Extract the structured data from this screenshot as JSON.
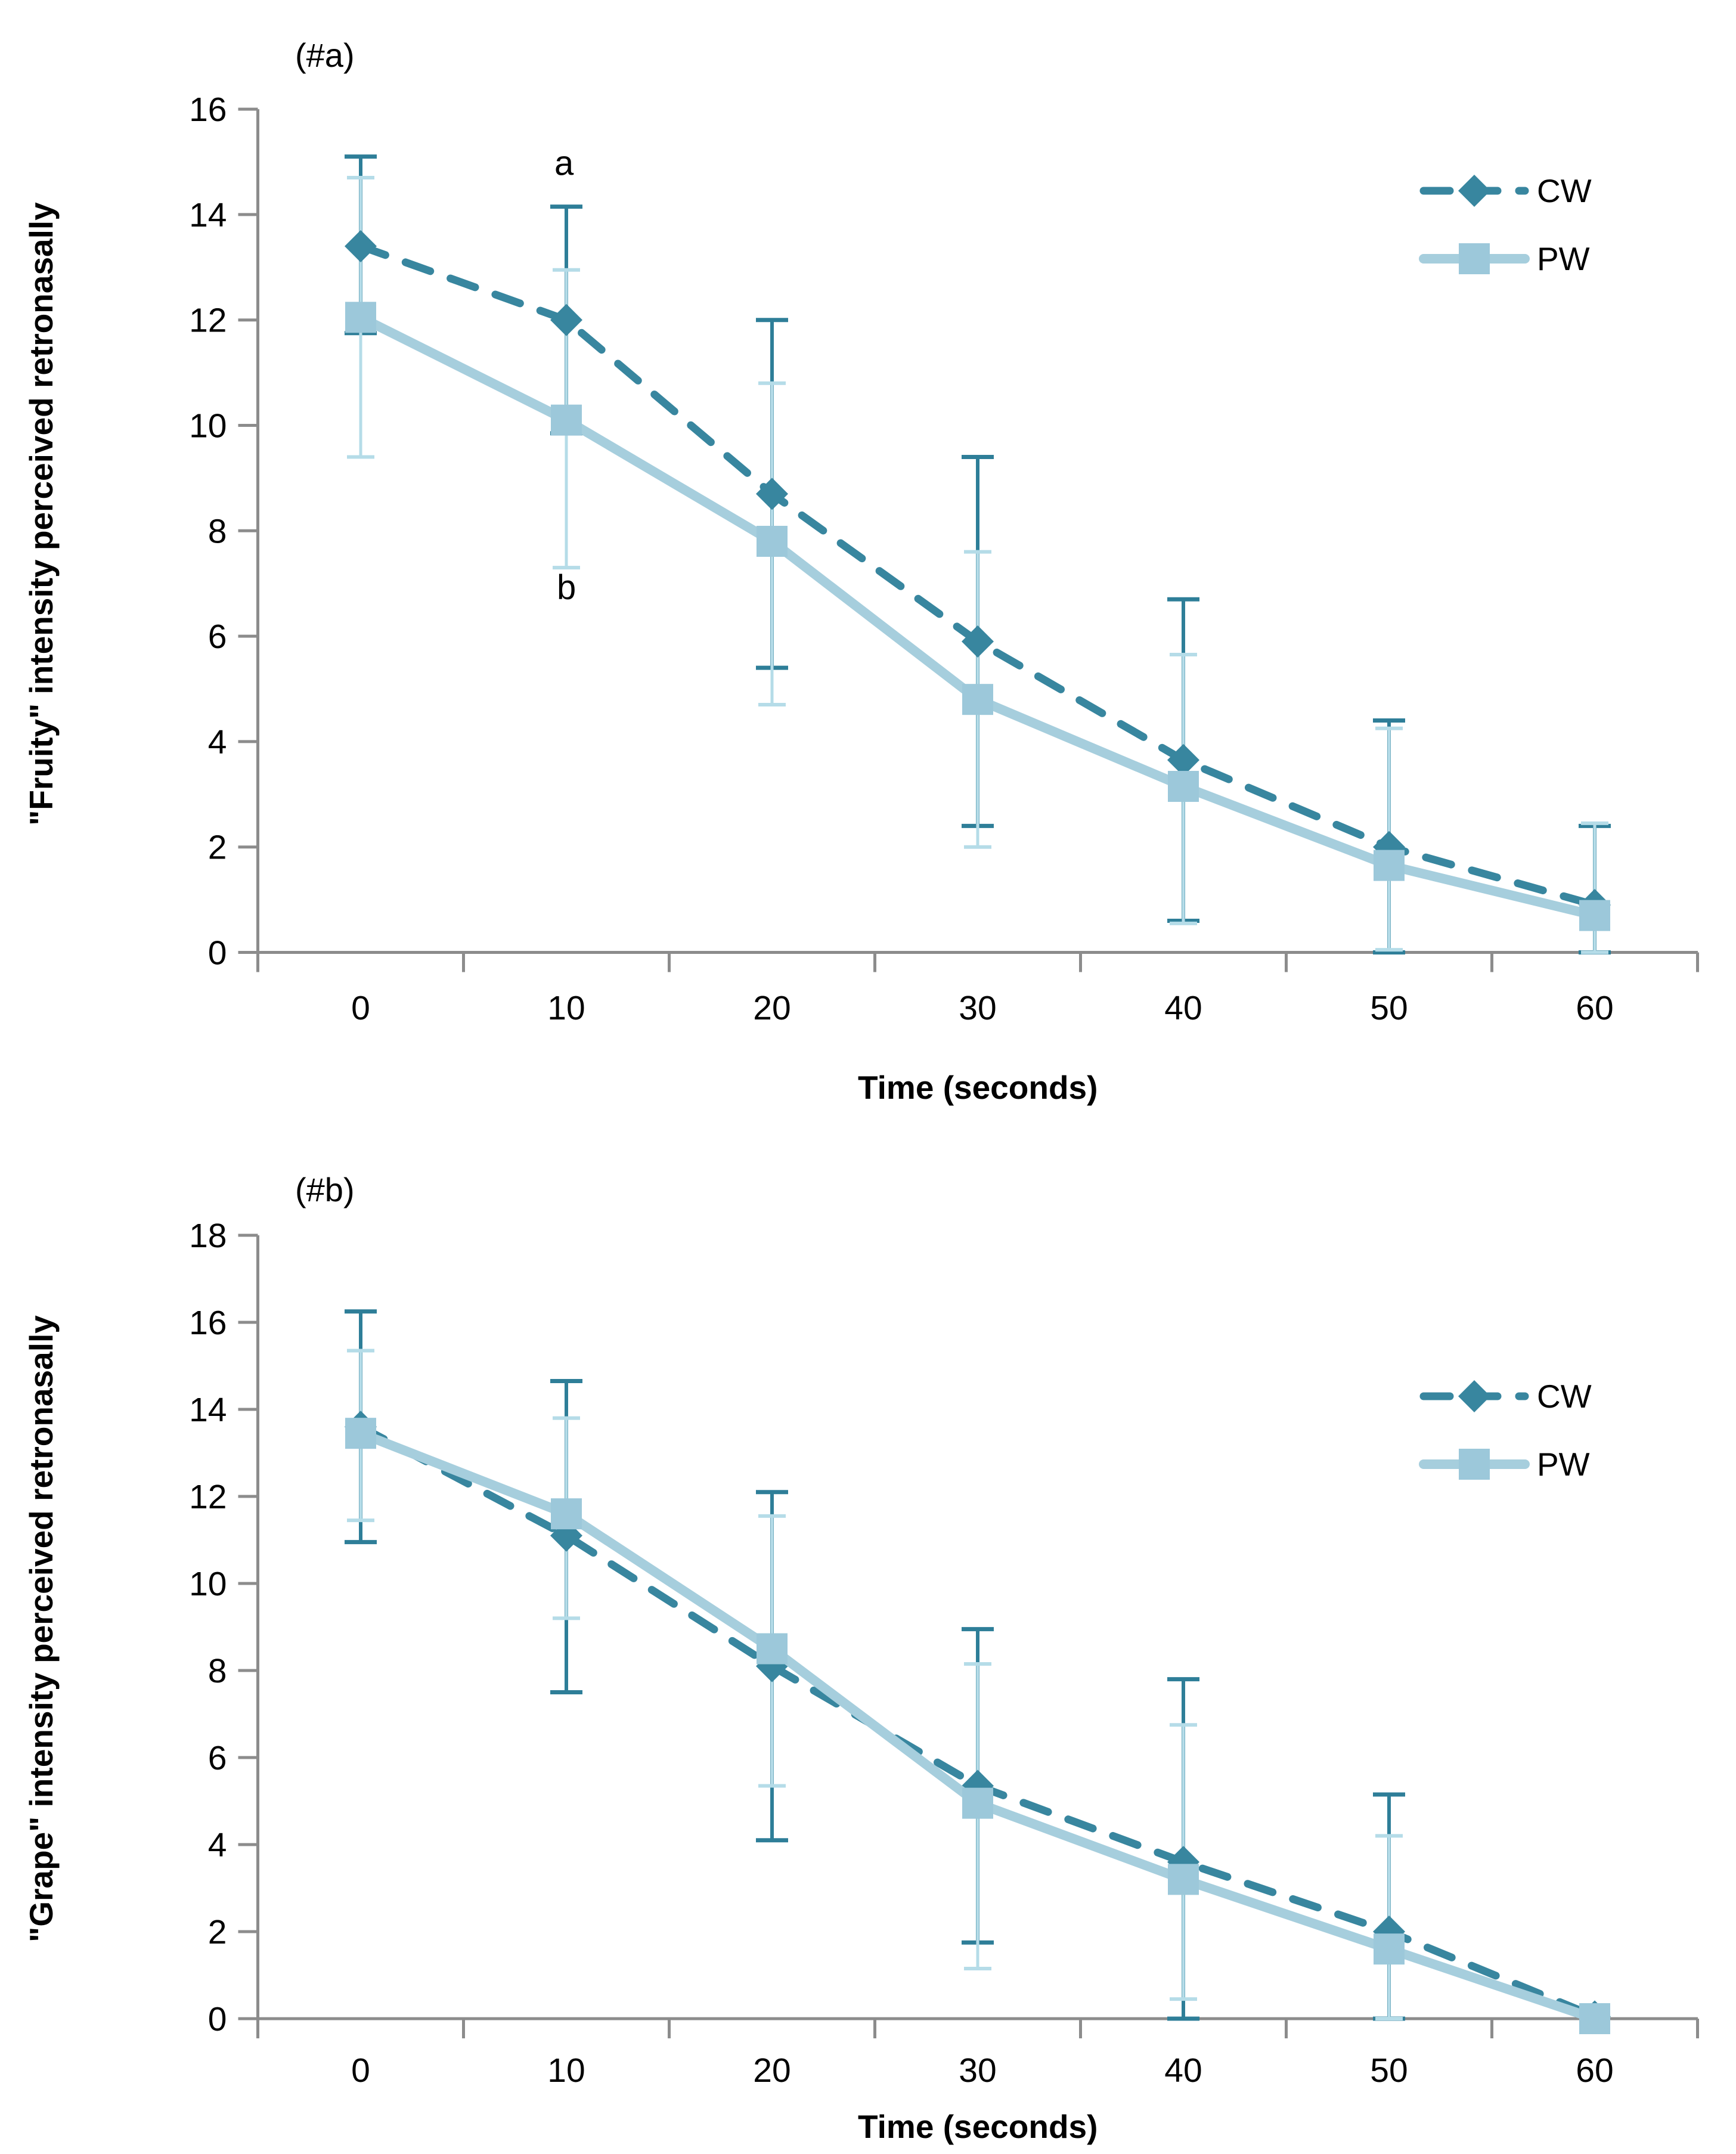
{
  "colors": {
    "cw": "#38869F",
    "cw_err": "#2E7E98",
    "pw_line": "#A6CEDD",
    "pw_marker": "#9CC8DA",
    "pw_err": "#B5DCE8",
    "axis": "#8C8C8C",
    "text": "#000000"
  },
  "chart_data": [
    {
      "type": "line",
      "panel_label": "(#a)",
      "xlabel": "Time (seconds)",
      "ylabel": "\"Fruity\" intensity perceived retronasally",
      "x": [
        0,
        10,
        20,
        30,
        40,
        50,
        60
      ],
      "ylim": [
        0,
        16
      ],
      "ytick_step": 2,
      "grid": false,
      "legend_position": "upper-right",
      "legend": [
        "CW",
        "PW"
      ],
      "series": [
        {
          "name": "CW",
          "style": "dashed",
          "marker": "diamond",
          "values": [
            13.4,
            12.0,
            8.7,
            5.9,
            3.65,
            2.0,
            0.9
          ],
          "err_hi": [
            15.1,
            14.15,
            12.0,
            9.4,
            6.7,
            4.4,
            2.4
          ],
          "err_lo": [
            11.75,
            9.85,
            5.4,
            2.4,
            0.6,
            0.0,
            0.0
          ]
        },
        {
          "name": "PW",
          "style": "solid",
          "marker": "square",
          "values": [
            12.05,
            10.1,
            7.8,
            4.8,
            3.15,
            1.65,
            0.7
          ],
          "err_hi": [
            14.7,
            12.95,
            10.8,
            7.6,
            5.65,
            4.25,
            2.45
          ],
          "err_lo": [
            9.4,
            7.3,
            4.7,
            2.0,
            0.55,
            0.05,
            0.0
          ]
        }
      ],
      "annotations": [
        {
          "text": "a",
          "x": 10,
          "y": 14.75,
          "dx": -20
        },
        {
          "text": "b",
          "x": 10,
          "y": 6.7,
          "dx": -16
        }
      ]
    },
    {
      "type": "line",
      "panel_label": "(#b)",
      "xlabel": "Time (seconds)",
      "ylabel": "\"Grape\" intensity perceived retronasally",
      "x": [
        0,
        10,
        20,
        30,
        40,
        50,
        60
      ],
      "ylim": [
        0,
        18
      ],
      "ytick_step": 2,
      "grid": false,
      "legend_position": "upper-right",
      "legend": [
        "CW",
        "PW"
      ],
      "series": [
        {
          "name": "CW",
          "style": "dashed",
          "marker": "diamond",
          "values": [
            13.6,
            11.1,
            8.1,
            5.35,
            3.6,
            2.0,
            0.05
          ],
          "err_hi": [
            16.25,
            14.65,
            12.1,
            8.95,
            7.8,
            5.15,
            0.05
          ],
          "err_lo": [
            10.95,
            7.5,
            4.1,
            1.75,
            0.0,
            0.0,
            0.05
          ]
        },
        {
          "name": "PW",
          "style": "solid",
          "marker": "square",
          "values": [
            13.45,
            11.6,
            8.5,
            4.95,
            3.2,
            1.6,
            0.0
          ],
          "err_hi": [
            15.35,
            13.8,
            11.55,
            8.15,
            6.75,
            4.2,
            0.0
          ],
          "err_lo": [
            11.45,
            9.2,
            5.35,
            1.15,
            0.45,
            0.0,
            0.0
          ]
        }
      ],
      "annotations": []
    }
  ]
}
